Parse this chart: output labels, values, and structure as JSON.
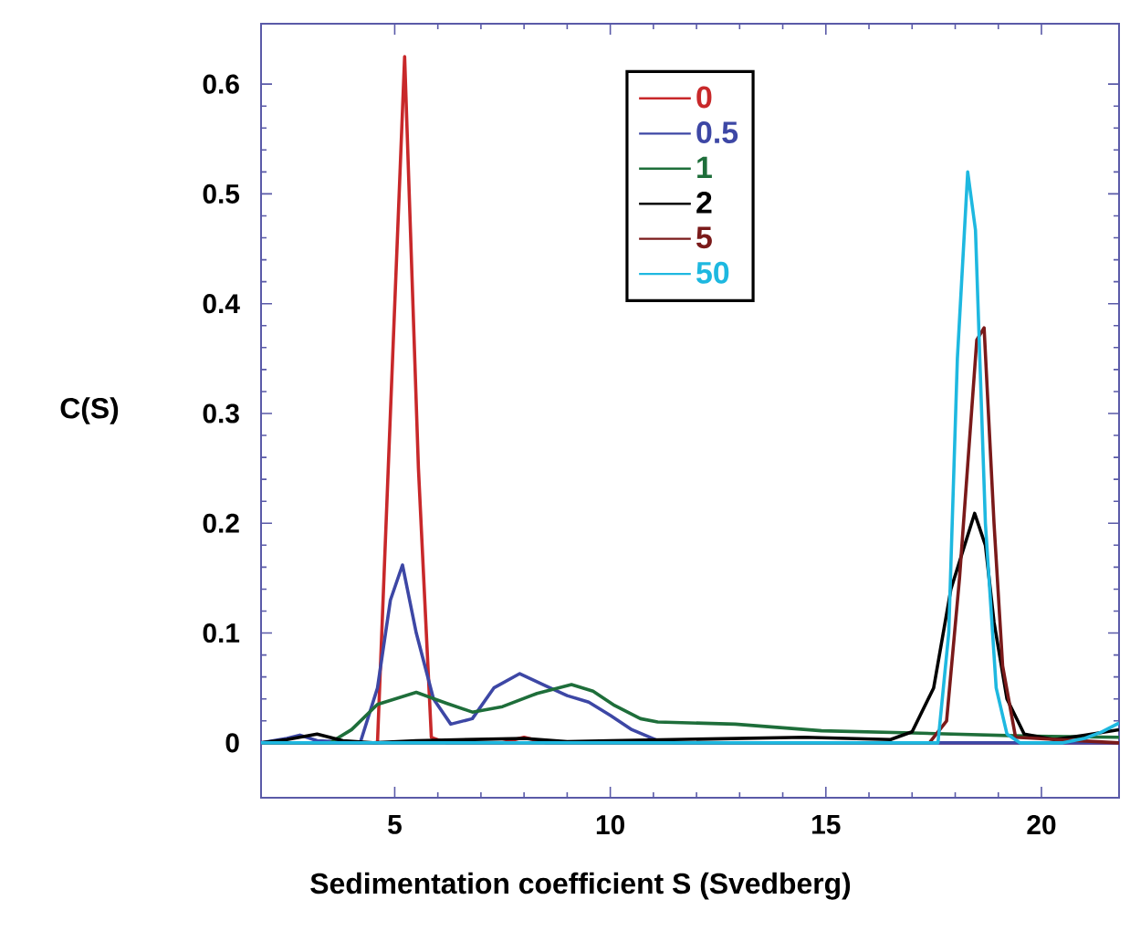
{
  "chart_data": {
    "type": "line",
    "xlabel": "Sedimentation coefficient S (Svedberg)",
    "ylabel": "C(S)",
    "xlim": [
      1.9,
      21.8
    ],
    "ylim": [
      -0.05,
      0.655
    ],
    "xticks": [
      5,
      10,
      15,
      20
    ],
    "yticks": [
      0,
      0.1,
      0.2,
      0.3,
      0.4,
      0.5,
      0.6
    ],
    "legend": "top",
    "grid": false,
    "marker": "none",
    "line_style": "solid",
    "series": [
      {
        "name": "0",
        "color": "#c8282a",
        "x": [
          1.9,
          4.3,
          4.6,
          4.9,
          5.23,
          5.55,
          5.85,
          6.2,
          7.5,
          8.0,
          8.5,
          21.8
        ],
        "values": [
          0,
          0,
          0,
          0.3,
          0.625,
          0.25,
          0.005,
          0,
          0,
          0.005,
          0,
          0
        ]
      },
      {
        "name": "0.5",
        "color": "#3d47a5",
        "x": [
          1.9,
          2.5,
          2.8,
          3.2,
          4.2,
          4.6,
          4.9,
          5.18,
          5.5,
          5.9,
          6.3,
          6.8,
          7.3,
          7.9,
          8.5,
          9.0,
          9.5,
          10.0,
          10.5,
          11.1,
          11.5,
          21.8
        ],
        "values": [
          0,
          0.004,
          0.007,
          0.002,
          0,
          0.05,
          0.13,
          0.162,
          0.1,
          0.04,
          0.017,
          0.022,
          0.05,
          0.063,
          0.052,
          0.043,
          0.037,
          0.025,
          0.012,
          0.002,
          0,
          0
        ]
      },
      {
        "name": "1",
        "color": "#1e6e3a",
        "x": [
          1.9,
          3.5,
          4.0,
          4.6,
          5.5,
          6.2,
          6.8,
          7.5,
          8.3,
          9.1,
          9.6,
          10.1,
          10.7,
          11.1,
          12.9,
          14.9,
          17.0,
          19.8,
          21.8
        ],
        "values": [
          0,
          0,
          0.012,
          0.035,
          0.046,
          0.036,
          0.028,
          0.033,
          0.045,
          0.053,
          0.047,
          0.034,
          0.022,
          0.019,
          0.017,
          0.011,
          0.009,
          0.006,
          0.005
        ]
      },
      {
        "name": "2",
        "color": "#000000",
        "x": [
          1.9,
          2.5,
          3.2,
          3.8,
          4.5,
          5.5,
          8.0,
          9.0,
          10.0,
          14.5,
          16.5,
          17.0,
          17.5,
          17.9,
          18.45,
          18.7,
          18.9,
          19.2,
          19.6,
          20.3,
          21.0,
          21.8
        ],
        "values": [
          0,
          0.003,
          0.008,
          0.002,
          0,
          0.002,
          0.004,
          0.001,
          0.002,
          0.005,
          0.003,
          0.01,
          0.05,
          0.14,
          0.209,
          0.18,
          0.11,
          0.04,
          0.008,
          0.003,
          0.007,
          0.012
        ]
      },
      {
        "name": "5",
        "color": "#7a1a1a",
        "x": [
          1.9,
          17.4,
          17.8,
          18.1,
          18.5,
          18.67,
          18.9,
          19.1,
          19.4,
          21.8
        ],
        "values": [
          0,
          0,
          0.02,
          0.15,
          0.367,
          0.378,
          0.2,
          0.07,
          0.005,
          0
        ]
      },
      {
        "name": "50",
        "color": "#1eb8e0",
        "x": [
          1.9,
          17.6,
          17.85,
          18.05,
          18.29,
          18.47,
          18.7,
          18.95,
          19.2,
          19.5,
          20.5,
          21.0,
          21.4,
          21.8
        ],
        "values": [
          0,
          0,
          0.1,
          0.35,
          0.52,
          0.467,
          0.2,
          0.05,
          0.008,
          0,
          0,
          0.004,
          0.01,
          0.018
        ]
      }
    ]
  }
}
